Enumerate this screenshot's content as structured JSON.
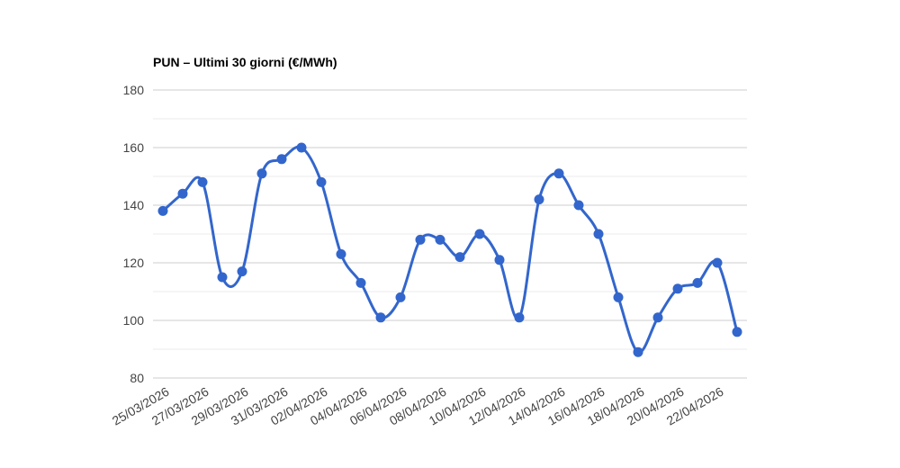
{
  "chart_data": {
    "type": "line",
    "title": "PUN – Ultimi 30 giorni (€/MWh)",
    "xlabel": "",
    "ylabel": "",
    "ylim": [
      80,
      180
    ],
    "y_ticks_labeled": [
      80,
      100,
      120,
      140,
      160,
      180
    ],
    "y_minor_ticks": [
      90,
      110,
      130,
      150,
      170
    ],
    "x_tick_labels": [
      "25/03/2026",
      "27/03/2026",
      "29/03/2026",
      "31/03/2026",
      "02/04/2026",
      "04/04/2026",
      "06/04/2026",
      "08/04/2026",
      "10/04/2026",
      "12/04/2026",
      "14/04/2026",
      "16/04/2026",
      "18/04/2026",
      "20/04/2026",
      "22/04/2026"
    ],
    "label_every": 2,
    "series": [
      {
        "name": "PUN",
        "values": [
          138,
          144,
          148,
          115,
          117,
          151,
          156,
          160,
          148,
          123,
          113,
          101,
          108,
          128,
          128,
          122,
          130,
          121,
          101,
          142,
          151,
          140,
          130,
          108,
          89,
          101,
          111,
          113,
          120,
          96
        ]
      }
    ],
    "grid": "horizontal-only",
    "legend": "none",
    "smoothing": "curved",
    "colors": {
      "line": "#3366cc",
      "point": "#3366cc",
      "grid_major": "#cccccc",
      "grid_minor": "#ebebeb",
      "axis_text": "#444444",
      "title_text": "#000000"
    }
  }
}
